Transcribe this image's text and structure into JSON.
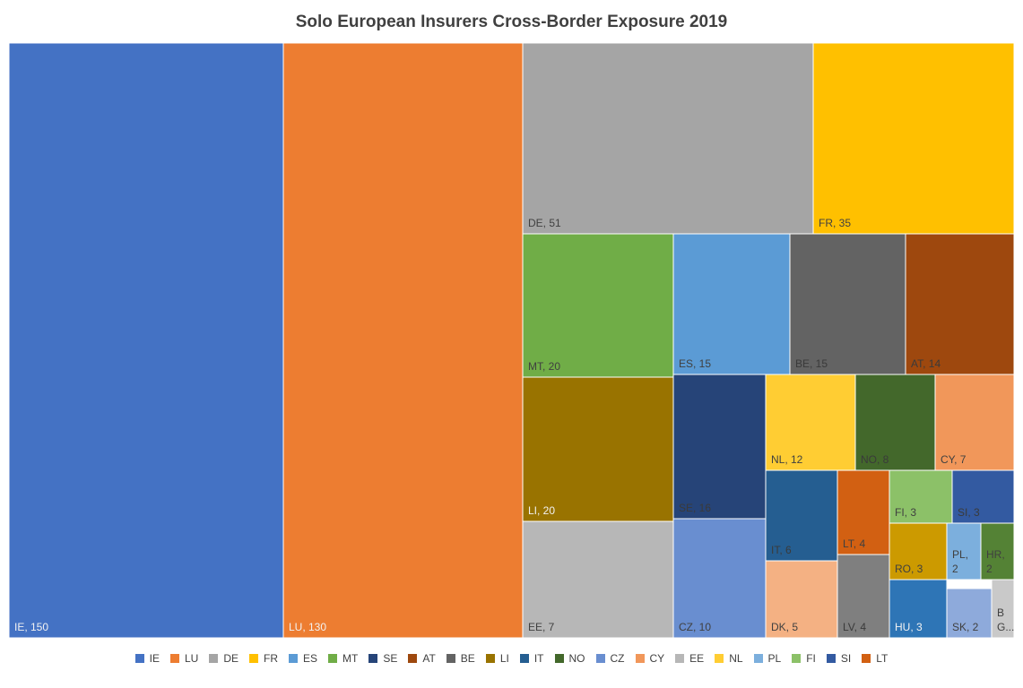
{
  "chart_data": {
    "type": "treemap",
    "title": "Solo European Insurers Cross-Border Exposure 2019",
    "items": [
      {
        "label": "IE",
        "value": 150,
        "color": "#4472C4",
        "text": "IE, 150"
      },
      {
        "label": "LU",
        "value": 130,
        "color": "#ED7D31",
        "text": "LU, 130"
      },
      {
        "label": "DE",
        "value": 51,
        "color": "#A5A5A5",
        "text": "DE, 51"
      },
      {
        "label": "FR",
        "value": 35,
        "color": "#FFC000",
        "text": "FR, 35"
      },
      {
        "label": "MT",
        "value": 20,
        "color": "#70AD47",
        "text": "MT, 20"
      },
      {
        "label": "ES",
        "value": 15,
        "color": "#5B9BD5",
        "text": "ES, 15"
      },
      {
        "label": "BE",
        "value": 15,
        "color": "#636363",
        "text": "BE, 15"
      },
      {
        "label": "AT",
        "value": 14,
        "color": "#9E480E",
        "text": "AT, 14"
      },
      {
        "label": "LI",
        "value": 20,
        "color": "#997300",
        "text": "LI, 20"
      },
      {
        "label": "SE",
        "value": 16,
        "color": "#264478",
        "text": "SE, 16"
      },
      {
        "label": "NL",
        "value": 12,
        "color": "#FFCD33",
        "text": "NL, 12"
      },
      {
        "label": "NO",
        "value": 8,
        "color": "#43682B",
        "text": "NO, 8"
      },
      {
        "label": "CY",
        "value": 7,
        "color": "#F1975A",
        "text": "CY, 7"
      },
      {
        "label": "EE",
        "value": 7,
        "color": "#B7B7B7",
        "text": "EE, 7"
      },
      {
        "label": "CZ",
        "value": 10,
        "color": "#698ED0",
        "text": "CZ, 10"
      },
      {
        "label": "IT",
        "value": 6,
        "color": "#255E91",
        "text": "IT, 6"
      },
      {
        "label": "LT",
        "value": 4,
        "color": "#D26012",
        "text": "LT, 4"
      },
      {
        "label": "FI",
        "value": 3,
        "color": "#8CC168",
        "text": "FI, 3"
      },
      {
        "label": "SI",
        "value": 3,
        "color": "#335AA1",
        "text": "SI, 3"
      },
      {
        "label": "DK",
        "value": 5,
        "color": "#F4B183",
        "text": "DK, 5"
      },
      {
        "label": "LV",
        "value": 4,
        "color": "#7F7F7F",
        "text": "LV, 4"
      },
      {
        "label": "RO",
        "value": 3,
        "color": "#CC9A00",
        "text": "RO, 3"
      },
      {
        "label": "PL",
        "value": 2,
        "color": "#7CAFDD",
        "text": "PL, 2"
      },
      {
        "label": "HR",
        "value": 2,
        "color": "#548235",
        "text": "HR, 2"
      },
      {
        "label": "HU",
        "value": 3,
        "color": "#2E75B6",
        "text": "HU, 3"
      },
      {
        "label": "SK",
        "value": 2,
        "color": "#8EAADB",
        "text": "SK, 2"
      },
      {
        "label": "BG",
        "value": 1,
        "color": "#C9C9C9",
        "text": "B G..."
      }
    ],
    "legend": {
      "placement": "bottom",
      "entries": [
        "IE",
        "LU",
        "DE",
        "FR",
        "ES",
        "MT",
        "SE",
        "AT",
        "BE",
        "LI",
        "IT",
        "NO",
        "CZ",
        "CY",
        "EE",
        "NL",
        "PL",
        "FI",
        "SI",
        "LT"
      ]
    }
  }
}
